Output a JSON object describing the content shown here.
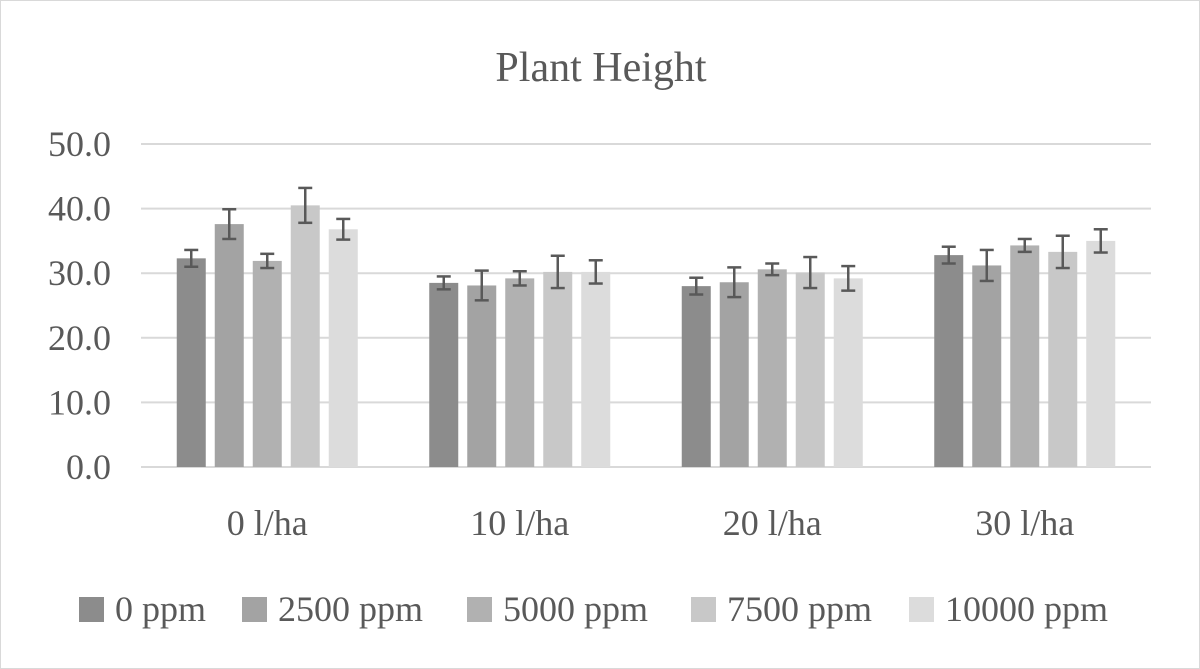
{
  "chart_data": {
    "type": "bar",
    "title": "Plant Height",
    "categories": [
      "0 l/ha",
      "10 l/ha",
      "20 l/ha",
      "30 l/ha"
    ],
    "ylim": [
      0,
      50
    ],
    "yticks": [
      "0.0",
      "10.0",
      "20.0",
      "30.0",
      "40.0",
      "50.0"
    ],
    "grid": true,
    "legend_position": "bottom",
    "series": [
      {
        "name": "0 ppm",
        "color": "#8c8c8c",
        "values": [
          32.3,
          28.5,
          28.0,
          32.8
        ],
        "errors": [
          1.3,
          1.0,
          1.3,
          1.3
        ]
      },
      {
        "name": "2500 ppm",
        "color": "#a3a3a3",
        "values": [
          37.6,
          28.1,
          28.6,
          31.2
        ],
        "errors": [
          2.3,
          2.3,
          2.3,
          2.4
        ]
      },
      {
        "name": "5000 ppm",
        "color": "#b1b1b1",
        "values": [
          31.9,
          29.2,
          30.6,
          34.3
        ],
        "errors": [
          1.1,
          1.1,
          0.9,
          1.0
        ]
      },
      {
        "name": "7500 ppm",
        "color": "#c8c8c8",
        "values": [
          40.5,
          30.2,
          30.1,
          33.3
        ],
        "errors": [
          2.7,
          2.5,
          2.4,
          2.5
        ]
      },
      {
        "name": "10000 ppm",
        "color": "#dcdcdc",
        "values": [
          36.8,
          30.2,
          29.2,
          35.0
        ],
        "errors": [
          1.6,
          1.8,
          1.9,
          1.8
        ]
      }
    ]
  }
}
